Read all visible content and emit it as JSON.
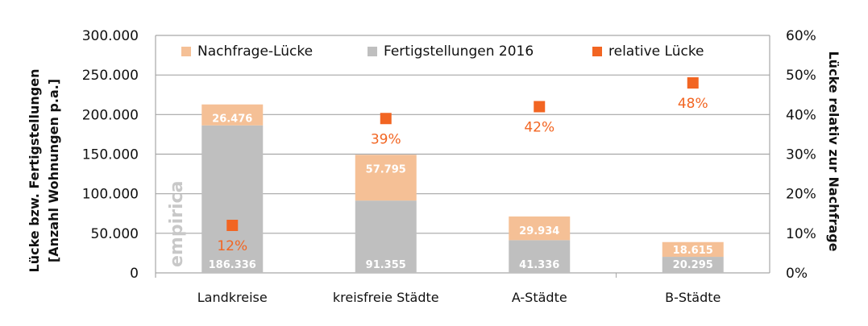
{
  "chart_data": {
    "type": "bar",
    "stacked": true,
    "categories": [
      "Landkreise",
      "kreisfreie Städte",
      "A-Städte",
      "B-Städte"
    ],
    "series": [
      {
        "name": "Fertigstellungen 2016",
        "axis": "left",
        "kind": "bar",
        "color": "#bfbfbf",
        "values": [
          186336,
          91355,
          41336,
          20295
        ],
        "labels": [
          "186.336",
          "91.355",
          "41.336",
          "20.295"
        ]
      },
      {
        "name": "Nachfrage-Lücke",
        "axis": "left",
        "kind": "bar",
        "color": "#f5c096",
        "values": [
          26476,
          57795,
          29934,
          18615
        ],
        "labels": [
          "26.476",
          "57.795",
          "29.934",
          "18.615"
        ]
      },
      {
        "name": "relative Lücke",
        "axis": "right",
        "kind": "marker",
        "color": "#f26522",
        "values": [
          0.12,
          0.39,
          0.42,
          0.48
        ],
        "labels": [
          "12%",
          "39%",
          "42%",
          "48%"
        ]
      }
    ],
    "legend": {
      "position": "top-inside",
      "entries": [
        {
          "label": "Nachfrage-Lücke",
          "color": "#f5c096"
        },
        {
          "label": "Fertigstellungen 2016",
          "color": "#bfbfbf"
        },
        {
          "label": "relative Lücke",
          "color": "#f26522"
        }
      ]
    },
    "y_left": {
      "label_line1": "Lücke bzw. Fertigstellungen",
      "label_line2": "[Anzahl Wohnungen p.a.]",
      "range": [
        0,
        300000
      ],
      "ticks": [
        0,
        50000,
        100000,
        150000,
        200000,
        250000,
        300000
      ],
      "tick_labels": [
        "0",
        "50.000",
        "100.000",
        "150.000",
        "200.000",
        "250.000",
        "300.000"
      ]
    },
    "y_right": {
      "label": "Lücke relativ zur Nachfrage",
      "range": [
        0,
        0.6
      ],
      "ticks": [
        0,
        0.1,
        0.2,
        0.3,
        0.4,
        0.5,
        0.6
      ],
      "tick_labels": [
        "0%",
        "10%",
        "20%",
        "30%",
        "40%",
        "50%",
        "60%"
      ]
    },
    "grid": true,
    "watermark": "empirica",
    "colors": {
      "gridline": "#a6a6a6",
      "axis": "#a6a6a6"
    }
  }
}
